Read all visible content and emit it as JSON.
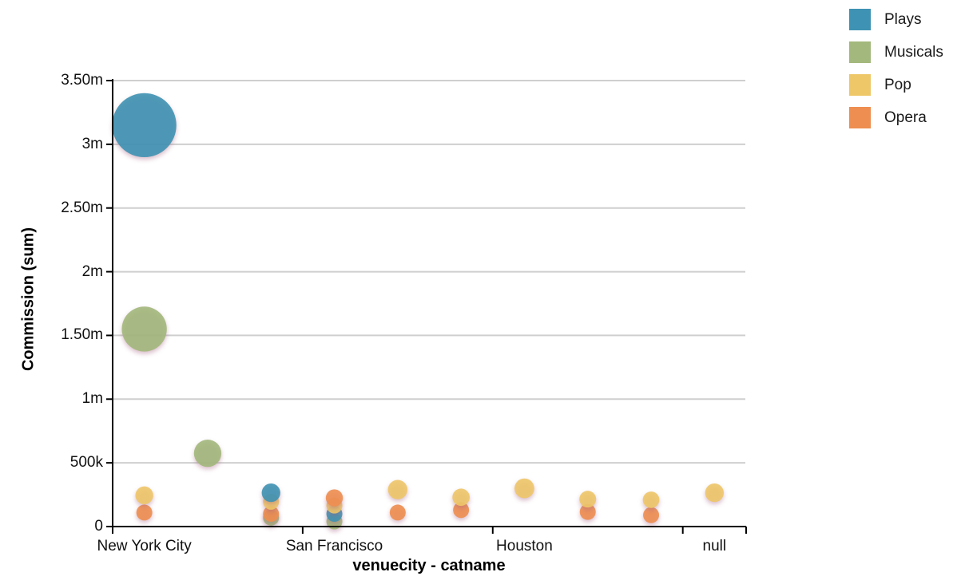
{
  "chart_data": {
    "type": "bubble",
    "title": "",
    "xlabel": "venuecity - catname",
    "ylabel": "Commission (sum)",
    "ylim": [
      0,
      3500000
    ],
    "grid": true,
    "legend_position": "top-right",
    "yticks": [
      {
        "value": 0,
        "label": "0"
      },
      {
        "value": 500000,
        "label": "500k"
      },
      {
        "value": 1000000,
        "label": "1m"
      },
      {
        "value": 1500000,
        "label": "1.50m"
      },
      {
        "value": 2000000,
        "label": "2m"
      },
      {
        "value": 2500000,
        "label": "2.50m"
      },
      {
        "value": 3000000,
        "label": "3m"
      },
      {
        "value": 3500000,
        "label": "3.50m"
      }
    ],
    "legend": [
      {
        "label": "Plays",
        "color": "#3e92b3"
      },
      {
        "label": "Musicals",
        "color": "#a3b87c"
      },
      {
        "label": "Pop",
        "color": "#eec768"
      },
      {
        "label": "Opera",
        "color": "#ee8e50"
      }
    ],
    "groups": [
      {
        "label": "New York City",
        "slots": [
          [
            {
              "category": "Plays",
              "value": 3150000
            },
            {
              "category": "Musicals",
              "value": 1550000
            },
            {
              "category": "Pop",
              "value": 245000
            },
            {
              "category": "Opera",
              "value": 110000
            }
          ],
          [
            {
              "category": "Musicals",
              "value": 575000
            }
          ],
          [
            {
              "category": "Plays",
              "value": 265000
            },
            {
              "category": "Pop",
              "value": 195000
            },
            {
              "category": "Opera",
              "value": 100000
            },
            {
              "category": "Musicals",
              "value": 70000
            }
          ]
        ]
      },
      {
        "label": "San Francisco",
        "slots": [
          [
            {
              "category": "Opera",
              "value": 225000
            },
            {
              "category": "Pop",
              "value": 165000
            },
            {
              "category": "Plays",
              "value": 100000
            },
            {
              "category": "Musicals",
              "value": 40000
            }
          ],
          [
            {
              "category": "Pop",
              "value": 290000
            },
            {
              "category": "Opera",
              "value": 110000
            }
          ],
          [
            {
              "category": "Pop",
              "value": 230000
            },
            {
              "category": "Opera",
              "value": 130000
            }
          ]
        ]
      },
      {
        "label": "Houston",
        "slots": [
          [
            {
              "category": "Pop",
              "value": 300000
            }
          ],
          [
            {
              "category": "Pop",
              "value": 215000
            },
            {
              "category": "Opera",
              "value": 115000
            }
          ],
          [
            {
              "category": "Pop",
              "value": 210000
            },
            {
              "category": "Opera",
              "value": 90000
            }
          ]
        ]
      },
      {
        "label": "null",
        "slots": [
          [
            {
              "category": "Pop",
              "value": 265000
            }
          ]
        ]
      }
    ]
  }
}
